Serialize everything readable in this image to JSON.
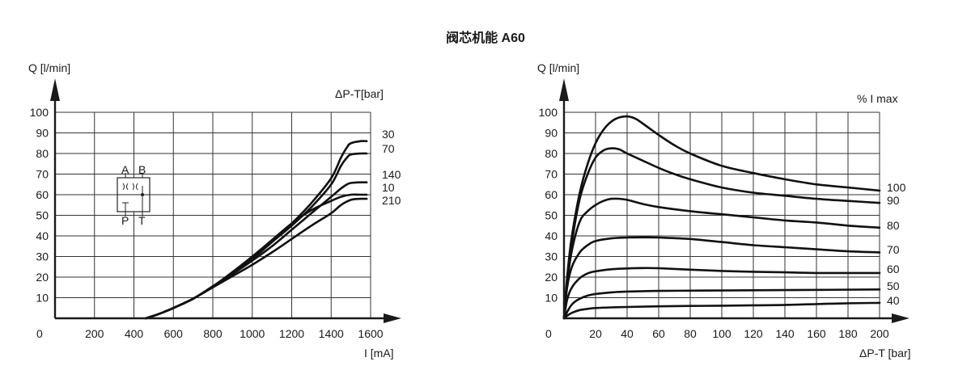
{
  "title": "阀芯机能 A60",
  "symbol": {
    "a": "A",
    "b": "B",
    "p": "P",
    "t": "T"
  },
  "chart_data": [
    {
      "type": "line",
      "ylabel": "Q [l/min]",
      "xlabel": "I [mA]",
      "legend_title": "ΔP-T[bar]",
      "xlim": [
        0,
        1600
      ],
      "ylim": [
        0,
        100
      ],
      "origin_label": "0",
      "x_ticks": [
        "200",
        "400",
        "600",
        "800",
        "1000",
        "1200",
        "1400",
        "1600"
      ],
      "y_ticks": [
        "10",
        "20",
        "30",
        "40",
        "50",
        "60",
        "70",
        "80",
        "90",
        "100"
      ],
      "series": [
        {
          "name": "30",
          "x": [
            460,
            500,
            550,
            600,
            700,
            800,
            900,
            1000,
            1100,
            1200,
            1300,
            1400,
            1450,
            1480,
            1500,
            1550,
            1580
          ],
          "y": [
            0,
            1.2,
            3,
            5,
            9.5,
            15.5,
            22,
            29,
            37,
            46,
            56,
            68,
            78,
            83,
            85,
            86,
            86
          ]
        },
        {
          "name": "70",
          "x": [
            460,
            500,
            550,
            600,
            700,
            800,
            900,
            1000,
            1100,
            1200,
            1300,
            1400,
            1450,
            1480,
            1500,
            1550,
            1580
          ],
          "y": [
            0,
            1.2,
            3,
            5,
            9.5,
            15.5,
            22,
            29,
            37,
            45,
            54,
            65,
            74,
            78,
            79.5,
            80,
            80
          ]
        },
        {
          "name": "140",
          "x": [
            460,
            500,
            550,
            600,
            700,
            800,
            900,
            1000,
            1100,
            1200,
            1300,
            1400,
            1450,
            1480,
            1500,
            1550,
            1580
          ],
          "y": [
            0,
            1.2,
            3,
            5,
            9.5,
            15.5,
            21.5,
            28,
            35,
            43,
            51,
            59,
            63,
            65,
            65.7,
            66,
            66
          ]
        },
        {
          "name": "10",
          "x": [
            460,
            500,
            550,
            600,
            700,
            800,
            900,
            1000,
            1100,
            1200,
            1300,
            1400,
            1450,
            1500,
            1550,
            1580
          ],
          "y": [
            0,
            1.2,
            3,
            5,
            9.5,
            15.5,
            22.5,
            30,
            38,
            46,
            52.5,
            57,
            59,
            60,
            60,
            60
          ]
        },
        {
          "name": "210",
          "x": [
            460,
            500,
            550,
            600,
            700,
            800,
            900,
            1000,
            1100,
            1200,
            1300,
            1400,
            1450,
            1500,
            1550,
            1580
          ],
          "y": [
            0,
            1.2,
            3,
            5,
            9.5,
            15,
            20.5,
            26,
            32,
            38.5,
            45,
            51,
            55,
            57.5,
            58,
            58
          ]
        }
      ]
    },
    {
      "type": "line",
      "ylabel": "Q [l/min]",
      "xlabel": "ΔP-T [bar]",
      "legend_title": "% I max",
      "xlim": [
        0,
        200
      ],
      "ylim": [
        0,
        100
      ],
      "origin_label": "0",
      "x_ticks": [
        "20",
        "40",
        "60",
        "80",
        "100",
        "120",
        "140",
        "160",
        "180",
        "200"
      ],
      "y_ticks": [
        "10",
        "20",
        "30",
        "40",
        "50",
        "60",
        "70",
        "80",
        "90",
        "100"
      ],
      "series": [
        {
          "name": "100",
          "x": [
            0,
            2,
            5,
            10,
            15,
            20,
            25,
            30,
            35,
            40,
            45,
            50,
            60,
            70,
            80,
            100,
            120,
            140,
            160,
            180,
            200
          ],
          "y": [
            0,
            20,
            40,
            61,
            75,
            85,
            91.5,
            95.5,
            97.5,
            98,
            97,
            94.5,
            89,
            84,
            80,
            74,
            70.5,
            67.5,
            65,
            63.5,
            62
          ]
        },
        {
          "name": "90",
          "x": [
            0,
            2,
            5,
            10,
            15,
            20,
            25,
            30,
            35,
            40,
            50,
            60,
            70,
            80,
            100,
            120,
            140,
            160,
            180,
            200
          ],
          "y": [
            0,
            18,
            37,
            58,
            70,
            78,
            81.5,
            82.5,
            82,
            80,
            76.5,
            73,
            70,
            67.5,
            63.5,
            61,
            59.5,
            58,
            57,
            56
          ]
        },
        {
          "name": "80",
          "x": [
            0,
            2,
            5,
            10,
            15,
            20,
            25,
            30,
            35,
            40,
            50,
            60,
            80,
            100,
            120,
            140,
            160,
            180,
            200
          ],
          "y": [
            0,
            17,
            33,
            47,
            52,
            55,
            57,
            58,
            58,
            57.5,
            55.5,
            54,
            52,
            50.5,
            49,
            47.5,
            46.5,
            45,
            44
          ]
        },
        {
          "name": "70",
          "x": [
            0,
            2,
            5,
            10,
            15,
            20,
            30,
            40,
            50,
            60,
            80,
            100,
            120,
            140,
            160,
            180,
            200
          ],
          "y": [
            0,
            15,
            25,
            32,
            35.5,
            37.5,
            38.8,
            39.2,
            39.3,
            39.2,
            38.5,
            37,
            35.5,
            34.5,
            33.5,
            32.5,
            32
          ]
        },
        {
          "name": "60",
          "x": [
            0,
            2,
            5,
            10,
            15,
            20,
            30,
            40,
            50,
            60,
            80,
            100,
            120,
            140,
            160,
            180,
            200
          ],
          "y": [
            0,
            9,
            15,
            19.5,
            21.8,
            22.8,
            23.8,
            24.2,
            24.4,
            24.3,
            23.6,
            23,
            22.6,
            22.3,
            22,
            22,
            22
          ]
        },
        {
          "name": "50",
          "x": [
            0,
            3,
            6,
            10,
            15,
            20,
            30,
            40,
            60,
            80,
            100,
            140,
            200
          ],
          "y": [
            0,
            4.5,
            7.5,
            9.5,
            11,
            11.8,
            12.6,
            13,
            13.3,
            13.4,
            13.5,
            13.7,
            14
          ]
        },
        {
          "name": "40",
          "x": [
            0,
            3,
            6,
            10,
            15,
            20,
            30,
            40,
            60,
            80,
            100,
            120,
            140,
            160,
            180,
            200
          ],
          "y": [
            0,
            1.8,
            3,
            4,
            4.6,
            5,
            5.3,
            5.5,
            5.8,
            6,
            6.1,
            6.3,
            6.5,
            6.9,
            7.3,
            7.5
          ]
        }
      ]
    }
  ]
}
